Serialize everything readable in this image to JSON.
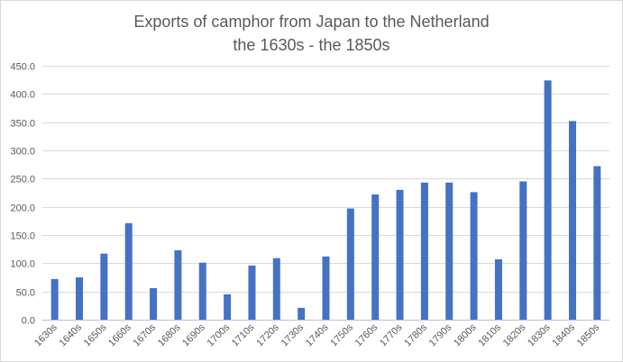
{
  "chart_data": {
    "type": "bar",
    "title": [
      "Exports of camphor from Japan to the Netherland",
      "the 1630s - the 1850s"
    ],
    "xlabel": "",
    "ylabel": "",
    "ylim": [
      0,
      450
    ],
    "yticks": [
      "0.0",
      "50.0",
      "100.0",
      "150.0",
      "200.0",
      "250.0",
      "300.0",
      "350.0",
      "400.0",
      "450.0"
    ],
    "grid": true,
    "legend": "none",
    "bar_color": "#4472c4",
    "categories": [
      "1630s",
      "1640s",
      "1650s",
      "1660s",
      "1670s",
      "1680s",
      "1690s",
      "1700s",
      "1710s",
      "1720s",
      "1730s",
      "1740s",
      "1750s",
      "1760s",
      "1770s",
      "1780s",
      "1790s",
      "1800s",
      "1810s",
      "1820s",
      "1830s",
      "1840s",
      "1850s"
    ],
    "values": [
      72,
      75,
      117,
      171,
      56,
      123,
      101,
      45,
      96,
      109,
      21,
      112,
      197,
      222,
      230,
      243,
      243,
      226,
      107,
      245,
      424,
      352,
      272
    ]
  }
}
